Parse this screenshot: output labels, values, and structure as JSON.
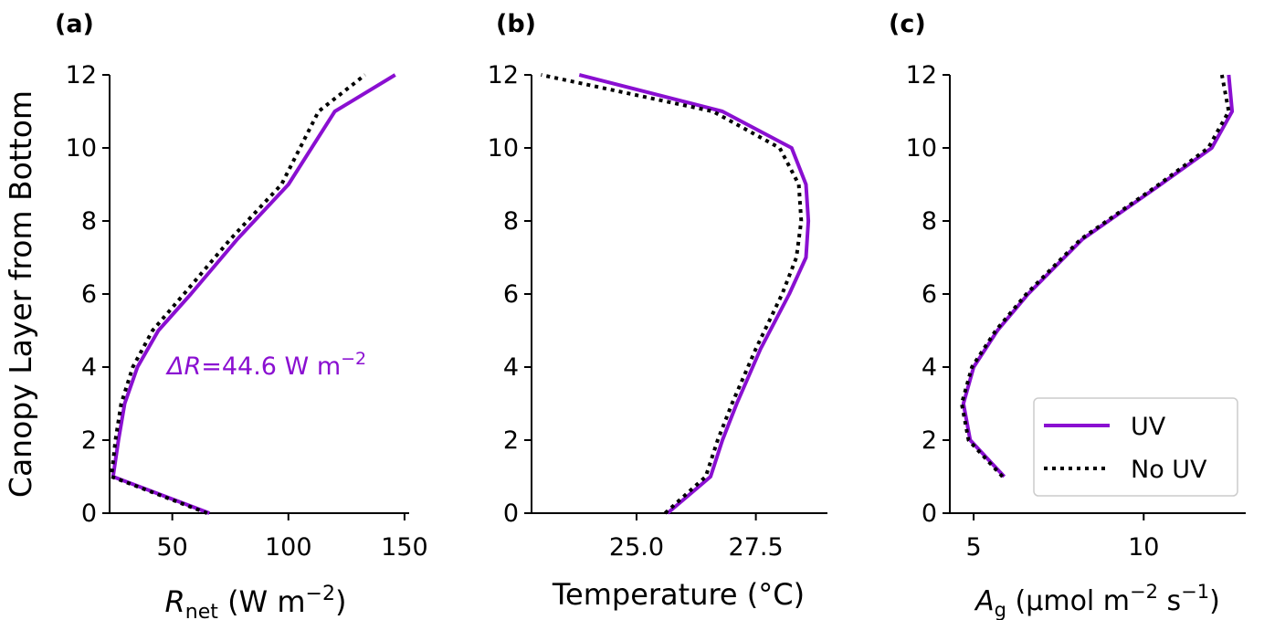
{
  "figure": {
    "ylabel": "Canopy Layer from Bottom",
    "colors": {
      "uv": "#8a0fd1",
      "no_uv": "#000000"
    },
    "legend": {
      "location": "lower-right",
      "entries": [
        "UV",
        "No UV"
      ]
    }
  },
  "chart_data": [
    {
      "panel": "(a)",
      "type": "line",
      "xlabel_main": "R",
      "xlabel_sub": "net",
      "xlabel_unit_pre": " (W m",
      "xlabel_unit_sup": "−2",
      "xlabel_unit_post": ")",
      "xticks": [
        "50",
        "100",
        "150"
      ],
      "xtick_values": [
        50,
        100,
        150
      ],
      "xlim": [
        23,
        152
      ],
      "yticks": [
        "0",
        "2",
        "4",
        "6",
        "8",
        "10",
        "12"
      ],
      "ylim": [
        0,
        12
      ],
      "annotation": {
        "prefix": "ΔR",
        "value": "=44.6 W m",
        "sup": "−2"
      },
      "series": [
        {
          "name": "UV",
          "style": "solid",
          "x": [
            66,
            24.5,
            26.8,
            29.5,
            35,
            44,
            58,
            78,
            100,
            120,
            146
          ],
          "y": [
            0,
            1,
            2,
            3,
            4,
            5,
            6,
            7.5,
            9,
            11,
            12
          ]
        },
        {
          "name": "No UV",
          "style": "dotted",
          "x": [
            65,
            23.8,
            25.5,
            28,
            33,
            41.5,
            55,
            75,
            97,
            113,
            133
          ],
          "y": [
            0,
            1,
            2,
            3,
            4,
            5,
            6,
            7.5,
            9,
            11,
            12
          ]
        }
      ]
    },
    {
      "panel": "(b)",
      "type": "line",
      "xlabel_main": "Temperature (°C)",
      "xticks": [
        "25.0",
        "27.5"
      ],
      "xtick_values": [
        25.0,
        27.5
      ],
      "xlim": [
        22.8,
        29.0
      ],
      "yticks": [
        "0",
        "2",
        "4",
        "6",
        "8",
        "10",
        "12"
      ],
      "ylim": [
        0,
        12
      ],
      "series": [
        {
          "name": "UV",
          "style": "solid",
          "x": [
            25.65,
            26.55,
            26.8,
            27.1,
            27.6,
            28.2,
            28.55,
            28.6,
            28.55,
            28.25,
            26.8,
            23.8
          ],
          "y": [
            0,
            1,
            2,
            3,
            4.5,
            6,
            7,
            8,
            9,
            10,
            11,
            12
          ]
        },
        {
          "name": "No UV",
          "style": "dotted",
          "x": [
            25.6,
            26.45,
            26.7,
            27.0,
            27.5,
            28.05,
            28.35,
            28.45,
            28.4,
            28.0,
            26.6,
            23.0
          ],
          "y": [
            0,
            1,
            2,
            3,
            4.5,
            6,
            7,
            8,
            9,
            10,
            11,
            12
          ]
        }
      ]
    },
    {
      "panel": "(c)",
      "type": "line",
      "xlabel_main": "A",
      "xlabel_sub": "g",
      "xlabel_unit_pre": " (μmol m",
      "xlabel_unit_sup": "−2",
      "xlabel_unit_mid": " s",
      "xlabel_unit_sup2": "−1",
      "xlabel_unit_post": ")",
      "xticks": [
        "5",
        "10"
      ],
      "xtick_values": [
        5,
        10
      ],
      "xlim": [
        4.3,
        13.0
      ],
      "yticks": [
        "0",
        "2",
        "4",
        "6",
        "8",
        "10",
        "12"
      ],
      "ylim": [
        0,
        12
      ],
      "series": [
        {
          "name": "UV",
          "style": "solid",
          "x": [
            5.9,
            4.9,
            4.7,
            5.0,
            5.7,
            6.6,
            8.2,
            10.5,
            12.0,
            12.6,
            12.5
          ],
          "y": [
            1,
            2,
            3,
            4,
            5,
            6,
            7.5,
            9,
            10,
            11,
            12
          ]
        },
        {
          "name": "No UV",
          "style": "dotted",
          "x": [
            5.85,
            4.85,
            4.65,
            4.95,
            5.65,
            6.55,
            8.15,
            10.45,
            11.9,
            12.5,
            12.3
          ],
          "y": [
            1,
            2,
            3,
            4,
            5,
            6,
            7.5,
            9,
            10,
            11,
            12
          ]
        }
      ]
    }
  ]
}
